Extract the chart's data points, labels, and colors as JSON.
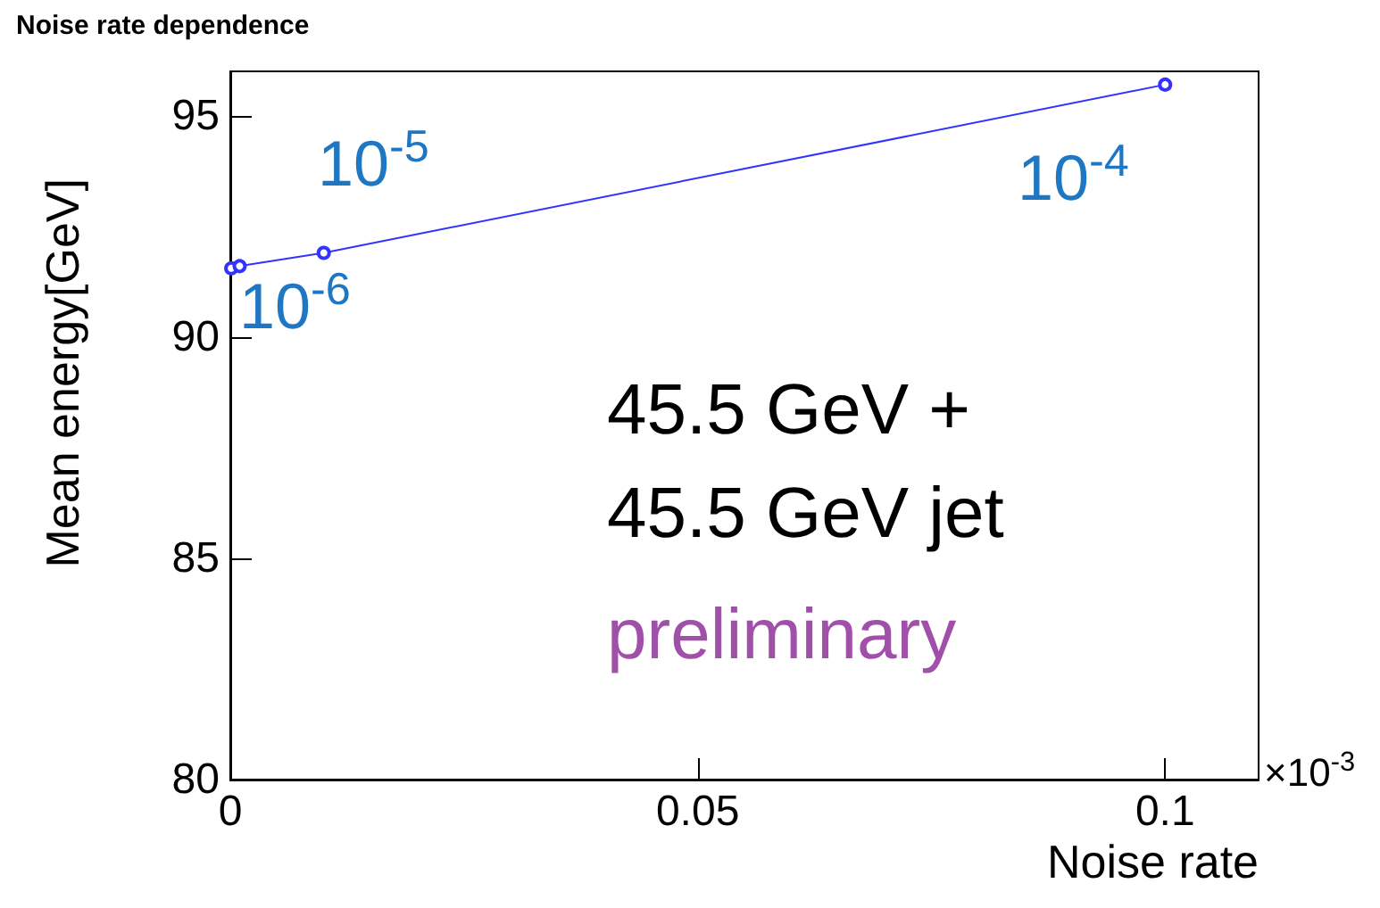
{
  "chart_data": {
    "type": "line",
    "title": "Noise rate dependence",
    "xlabel": "Noise rate",
    "ylabel": "Mean energy[GeV]",
    "x": [
      0.0001,
      0.001,
      0.01,
      0.1
    ],
    "series": [
      {
        "color": "#3333ff",
        "values": [
          91.55,
          91.6,
          91.9,
          95.7
        ]
      }
    ],
    "xlim": [
      0,
      0.11
    ],
    "xticks": [
      0,
      0.05,
      0.1
    ],
    "ylim": [
      80,
      96
    ],
    "yticks": [
      80,
      85,
      90,
      95
    ],
    "grid": false,
    "marker": "circle",
    "line_style": "solid",
    "annotations": [
      "10$^{-5}$",
      "10$^{-6}$",
      "10$^{-4}$",
      "45.5 GeV +",
      "45.5 GeV jet",
      "preliminary",
      "×10$^{-3}$"
    ]
  }
}
